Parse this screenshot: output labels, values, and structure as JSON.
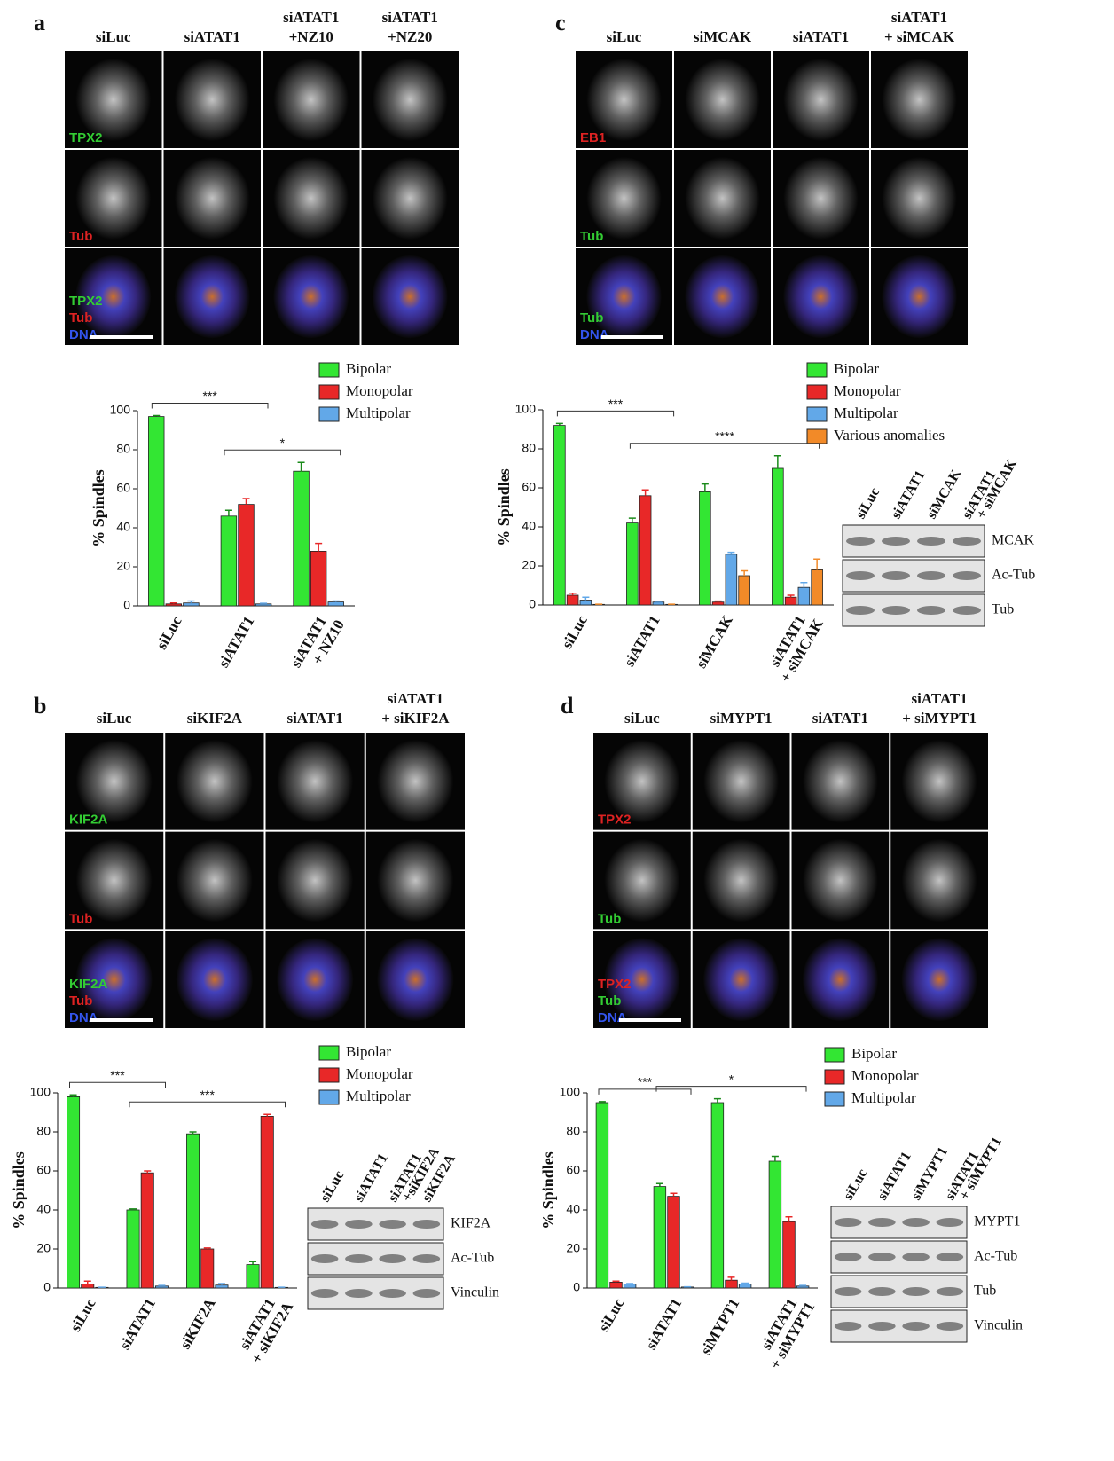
{
  "panels": [
    {
      "letter": "a",
      "columns": [
        [
          "siLuc"
        ],
        [
          "siATAT1"
        ],
        [
          "siATAT1",
          "+NZ10"
        ],
        [
          "siATAT1",
          "+NZ20"
        ]
      ],
      "row_labels": [
        [
          {
            "text": "TPX2",
            "color": "#33cc33"
          }
        ],
        [
          {
            "text": "Tub",
            "color": "#dd2222"
          }
        ],
        [
          {
            "text": "TPX2",
            "color": "#33cc33"
          },
          {
            "text": "Tub",
            "color": "#dd2222"
          },
          {
            "text": "DNA",
            "color": "#3355ee"
          }
        ]
      ]
    },
    {
      "letter": "b",
      "columns": [
        [
          "siLuc"
        ],
        [
          "siKIF2A"
        ],
        [
          "siATAT1"
        ],
        [
          "siATAT1",
          "+ siKIF2A"
        ]
      ],
      "row_labels": [
        [
          {
            "text": "KIF2A",
            "color": "#33cc33"
          }
        ],
        [
          {
            "text": "Tub",
            "color": "#dd2222"
          }
        ],
        [
          {
            "text": "KIF2A",
            "color": "#33cc33"
          },
          {
            "text": "Tub",
            "color": "#dd2222"
          },
          {
            "text": "DNA",
            "color": "#3355ee"
          }
        ]
      ],
      "blot": {
        "lanes": [
          [
            "siLuc"
          ],
          [
            "siATAT1"
          ],
          [
            "siATAT1",
            "+siKIF2A"
          ],
          [
            "siKIF2A"
          ]
        ],
        "rows": [
          "KIF2A",
          "Ac-Tub",
          "Vinculin"
        ]
      }
    },
    {
      "letter": "c",
      "columns": [
        [
          "siLuc"
        ],
        [
          "siMCAK"
        ],
        [
          "siATAT1"
        ],
        [
          "siATAT1",
          "+ siMCAK"
        ]
      ],
      "row_labels": [
        [
          {
            "text": "EB1",
            "color": "#dd2222"
          }
        ],
        [
          {
            "text": "Tub",
            "color": "#33cc33"
          }
        ],
        [
          {
            "text": "Tub",
            "color": "#33cc33"
          },
          {
            "text": "DNA",
            "color": "#3355ee"
          }
        ]
      ],
      "blot": {
        "lanes": [
          [
            "siLuc"
          ],
          [
            "siATAT1"
          ],
          [
            "siMCAK"
          ],
          [
            "siATAT1",
            "+ siMCAK"
          ]
        ],
        "rows": [
          "MCAK",
          "Ac-Tub",
          "Tub"
        ]
      }
    },
    {
      "letter": "d",
      "columns": [
        [
          "siLuc"
        ],
        [
          "siMYPT1"
        ],
        [
          "siATAT1"
        ],
        [
          "siATAT1",
          "+ siMYPT1"
        ]
      ],
      "row_labels": [
        [
          {
            "text": "TPX2",
            "color": "#dd2222"
          }
        ],
        [
          {
            "text": "Tub",
            "color": "#33cc33"
          }
        ],
        [
          {
            "text": "TPX2",
            "color": "#dd2222"
          },
          {
            "text": "Tub",
            "color": "#33cc33"
          },
          {
            "text": "DNA",
            "color": "#3355ee"
          }
        ]
      ],
      "blot": {
        "lanes": [
          [
            "siLuc"
          ],
          [
            "siATAT1"
          ],
          [
            "siMYPT1"
          ],
          [
            "siATAT1",
            "+ siMYPT1"
          ]
        ],
        "rows": [
          "MYPT1",
          "Ac-Tub",
          "Tub",
          "Vinculin"
        ]
      }
    }
  ],
  "chart_data": [
    {
      "type": "bar",
      "y_label": "% Spindles",
      "ylim": [
        0,
        100
      ],
      "yticks": [
        0,
        20,
        40,
        60,
        80,
        100
      ],
      "categories": [
        [
          "siLuc"
        ],
        [
          "siATAT1"
        ],
        [
          "siATAT1",
          "+ NZ10"
        ]
      ],
      "series": [
        {
          "name": "Bipolar",
          "color": "#33e633",
          "values": [
            97,
            46,
            69
          ],
          "errors": [
            0.5,
            3,
            4.5
          ]
        },
        {
          "name": "Monopolar",
          "color": "#e82828",
          "values": [
            1,
            52,
            28
          ],
          "errors": [
            0.5,
            3,
            4
          ]
        },
        {
          "name": "Multipolar",
          "color": "#62a8e8",
          "values": [
            1.5,
            1,
            2
          ],
          "errors": [
            1,
            0.3,
            0.5
          ]
        }
      ],
      "brackets": [
        {
          "text": "***",
          "categories": [
            0,
            1
          ]
        },
        {
          "text": "*",
          "categories": [
            1,
            2
          ]
        }
      ]
    },
    {
      "type": "bar",
      "y_label": "% Spindles",
      "ylim": [
        0,
        100
      ],
      "yticks": [
        0,
        20,
        40,
        60,
        80,
        100
      ],
      "categories": [
        [
          "siLuc"
        ],
        [
          "siATAT1"
        ],
        [
          "siKIF2A"
        ],
        [
          "siATAT1",
          "+ siKIF2A"
        ]
      ],
      "series": [
        {
          "name": "Bipolar",
          "color": "#33e633",
          "values": [
            98,
            40,
            79,
            12
          ],
          "errors": [
            1,
            0.5,
            1,
            1.5
          ]
        },
        {
          "name": "Monopolar",
          "color": "#e82828",
          "values": [
            2,
            59,
            20,
            88
          ],
          "errors": [
            1.5,
            1,
            0.5,
            1
          ]
        },
        {
          "name": "Multipolar",
          "color": "#62a8e8",
          "values": [
            0.3,
            1,
            1.5,
            0.3
          ],
          "errors": [
            0.1,
            0.3,
            0.8,
            0.1
          ]
        }
      ],
      "brackets": [
        {
          "text": "***",
          "categories": [
            0,
            1
          ]
        },
        {
          "text": "***",
          "categories": [
            1,
            3
          ]
        }
      ]
    },
    {
      "type": "bar",
      "y_label": "% Spindles",
      "ylim": [
        0,
        100
      ],
      "yticks": [
        0,
        20,
        40,
        60,
        80,
        100
      ],
      "categories": [
        [
          "siLuc"
        ],
        [
          "siATAT1"
        ],
        [
          "siMCAK"
        ],
        [
          "siATAT1",
          "+ siMCAK"
        ]
      ],
      "series": [
        {
          "name": "Bipolar",
          "color": "#33e633",
          "values": [
            92,
            42,
            58,
            70
          ],
          "errors": [
            1,
            2.5,
            4,
            6.5
          ]
        },
        {
          "name": "Monopolar",
          "color": "#e82828",
          "values": [
            5,
            56,
            1.5,
            4
          ],
          "errors": [
            1,
            3,
            0.5,
            1
          ]
        },
        {
          "name": "Multipolar",
          "color": "#62a8e8",
          "values": [
            2.5,
            1.5,
            26,
            9
          ],
          "errors": [
            1.5,
            0.3,
            1,
            2.5
          ]
        },
        {
          "name": "Various anomalies",
          "color": "#f28a28",
          "values": [
            0.3,
            0.3,
            15,
            18
          ],
          "errors": [
            0.1,
            0.1,
            2.5,
            5.5
          ]
        }
      ],
      "brackets": [
        {
          "text": "***",
          "categories": [
            0,
            1
          ]
        },
        {
          "text": "****",
          "categories": [
            1,
            3
          ]
        }
      ]
    },
    {
      "type": "bar",
      "y_label": "% Spindles",
      "ylim": [
        0,
        100
      ],
      "yticks": [
        0,
        20,
        40,
        60,
        80,
        100
      ],
      "categories": [
        [
          "siLuc"
        ],
        [
          "siATAT1"
        ],
        [
          "siMYPT1"
        ],
        [
          "siATAT1",
          "+ siMYPT1"
        ]
      ],
      "series": [
        {
          "name": "Bipolar",
          "color": "#33e633",
          "values": [
            95,
            52,
            95,
            65
          ],
          "errors": [
            0.5,
            1.5,
            2,
            2.5
          ]
        },
        {
          "name": "Monopolar",
          "color": "#e82828",
          "values": [
            3,
            47,
            4,
            34
          ],
          "errors": [
            0.5,
            1.5,
            1.5,
            2.5
          ]
        },
        {
          "name": "Multipolar",
          "color": "#62a8e8",
          "values": [
            2,
            0.5,
            2,
            1
          ],
          "errors": [
            0.3,
            0.1,
            0.5,
            0.3
          ]
        }
      ],
      "brackets": [
        {
          "text": "***",
          "categories": [
            0,
            1
          ]
        },
        {
          "text": "*",
          "categories": [
            1,
            3
          ]
        }
      ]
    }
  ]
}
